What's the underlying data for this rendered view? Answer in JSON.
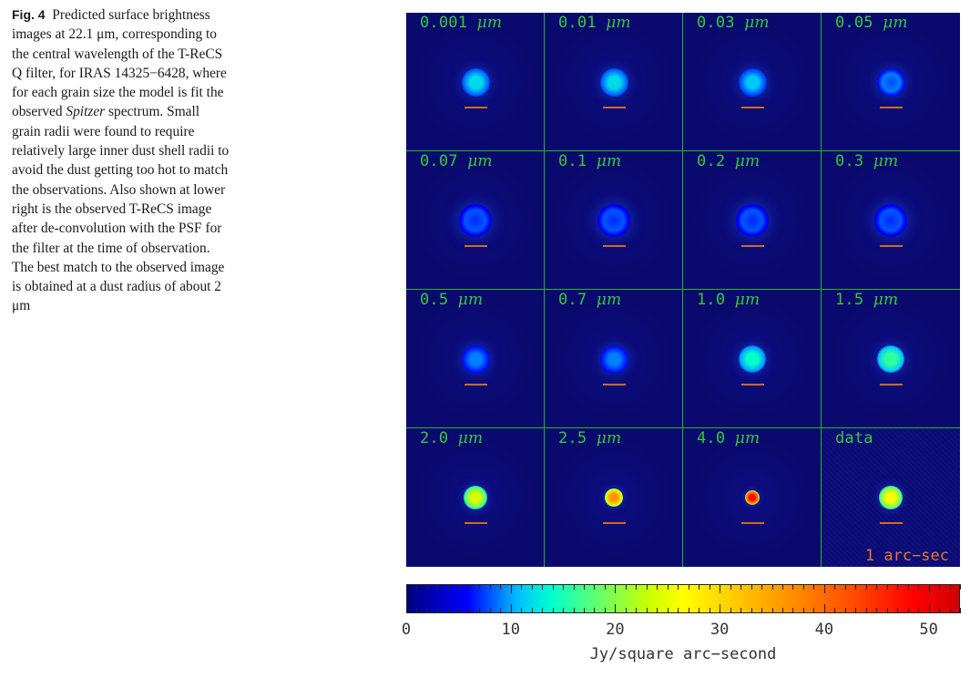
{
  "caption": {
    "label": "Fig. 4",
    "text_before": "Predicted surface brightness images at 22.1 μm, corresponding to the central wavelength of the T-ReCS Q filter, for IRAS 14325−6428, where for each grain size the model is fit the observed ",
    "italic": "Spitzer",
    "text_after": " spectrum. Small grain radii were found to require relatively large inner dust shell radii to avoid the dust getting too hot to match the observations. Also shown at lower right is the observed T-ReCS image after de-convolution with the PSF for the filter at the time of observation. The best match to the observed image is obtained at a dust radius of about 2 μm"
  },
  "panels": [
    {
      "value": "0.001",
      "unit": "μm",
      "peak": 12,
      "size": "large"
    },
    {
      "value": "0.01",
      "unit": "μm",
      "peak": 12,
      "size": "large"
    },
    {
      "value": "0.03",
      "unit": "μm",
      "peak": 11,
      "size": "large"
    },
    {
      "value": "0.05",
      "unit": "μm",
      "peak": 9,
      "size": "large",
      "ring": true
    },
    {
      "value": "0.07",
      "unit": "μm",
      "peak": 8,
      "size": "xlarge",
      "ring": true
    },
    {
      "value": "0.1",
      "unit": "μm",
      "peak": 8,
      "size": "xlarge",
      "ring": true
    },
    {
      "value": "0.2",
      "unit": "μm",
      "peak": 8,
      "size": "xlarge",
      "ring": true
    },
    {
      "value": "0.3",
      "unit": "μm",
      "peak": 8,
      "size": "xlarge",
      "ring": true
    },
    {
      "value": "0.5",
      "unit": "μm",
      "peak": 9,
      "size": "large"
    },
    {
      "value": "0.7",
      "unit": "μm",
      "peak": 9,
      "size": "large"
    },
    {
      "value": "1.0",
      "unit": "μm",
      "peak": 14,
      "size": "medium"
    },
    {
      "value": "1.5",
      "unit": "μm",
      "peak": 16,
      "size": "medium"
    },
    {
      "value": "2.0",
      "unit": "μm",
      "peak": 24,
      "size": "small"
    },
    {
      "value": "2.5",
      "unit": "μm",
      "peak": 36,
      "size": "xsmall"
    },
    {
      "value": "4.0",
      "unit": "μm",
      "peak": 48,
      "size": "tiny"
    },
    {
      "value": "data",
      "unit": "",
      "peak": 26,
      "size": "small",
      "data": true
    }
  ],
  "scale_label": "1 arc−sec",
  "colorbar": {
    "min": 0,
    "max": 53,
    "tick_labels": [
      "0",
      "10",
      "20",
      "30",
      "40",
      "50"
    ],
    "label": "Jy/square arc−second"
  }
}
